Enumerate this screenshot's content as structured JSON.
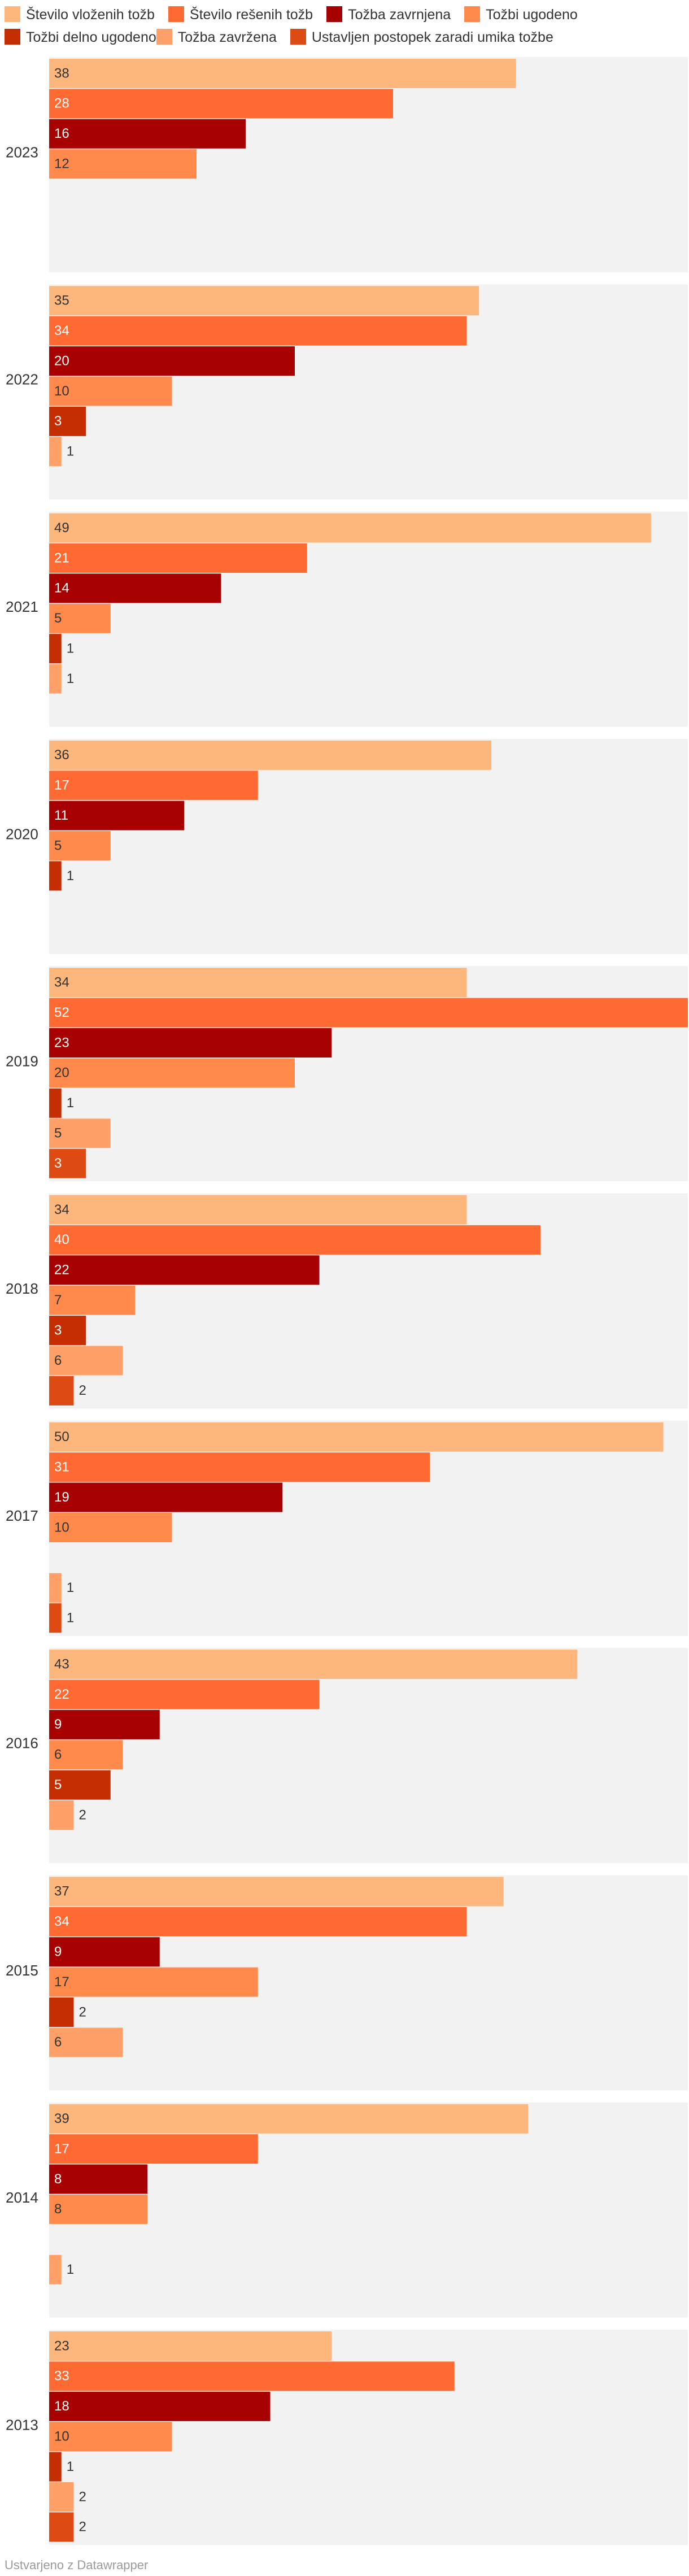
{
  "footer": "Ustvarjeno z Datawrapper",
  "chart_data": {
    "type": "bar",
    "orientation": "horizontal",
    "layout": "small-multiples",
    "panel_background": "#f2f2f2",
    "series": [
      {
        "name": "Število vloženih tožb",
        "color": "#fdb77c"
      },
      {
        "name": "Število rešenih tožb",
        "color": "#ff6a33"
      },
      {
        "name": "Tožba zavrnjena",
        "color": "#a60000"
      },
      {
        "name": "Tožbi ugodeno",
        "color": "#ff8a4c"
      },
      {
        "name": "Tožbi delno ugodeno",
        "color": "#c42e00"
      },
      {
        "name": "Tožba zavržena",
        "color": "#ffa068"
      },
      {
        "name": "Ustavljen postopek zaradi umika tožbe",
        "color": "#dd4a12"
      }
    ],
    "xlim": [
      0,
      52
    ],
    "panels": [
      {
        "year": "2023",
        "values": [
          38,
          28,
          16,
          12,
          null,
          null,
          null
        ]
      },
      {
        "year": "2022",
        "values": [
          35,
          34,
          20,
          10,
          3,
          1,
          null
        ]
      },
      {
        "year": "2021",
        "values": [
          49,
          21,
          14,
          5,
          1,
          1,
          null
        ]
      },
      {
        "year": "2020",
        "values": [
          36,
          17,
          11,
          5,
          1,
          null,
          null
        ]
      },
      {
        "year": "2019",
        "values": [
          34,
          52,
          23,
          20,
          1,
          5,
          3
        ]
      },
      {
        "year": "2018",
        "values": [
          34,
          40,
          22,
          7,
          3,
          6,
          2
        ]
      },
      {
        "year": "2017",
        "values": [
          50,
          31,
          19,
          10,
          null,
          1,
          1
        ]
      },
      {
        "year": "2016",
        "values": [
          43,
          22,
          9,
          6,
          5,
          2,
          null
        ]
      },
      {
        "year": "2015",
        "values": [
          37,
          34,
          9,
          17,
          2,
          6,
          null
        ]
      },
      {
        "year": "2014",
        "values": [
          39,
          17,
          8,
          8,
          null,
          1,
          null
        ]
      },
      {
        "year": "2013",
        "values": [
          23,
          33,
          18,
          10,
          1,
          2,
          2
        ]
      }
    ]
  }
}
